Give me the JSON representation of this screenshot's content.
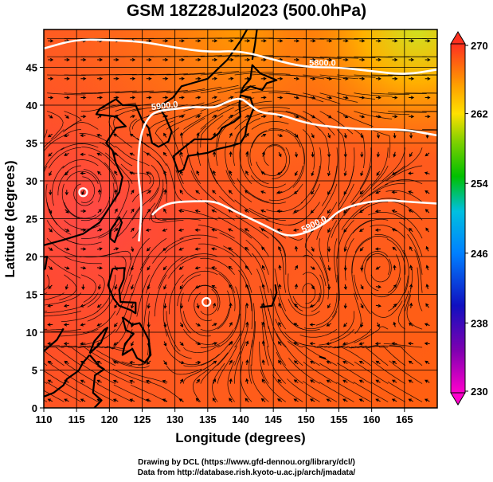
{
  "title": "GSM 18Z28Jul2023 (500.0hPa)",
  "axes": {
    "xlabel": "Longitude (degrees)",
    "ylabel": "Latitude  (degrees)",
    "x_ticks": [
      "110",
      "115",
      "120",
      "125",
      "130",
      "135",
      "140",
      "145",
      "150",
      "155",
      "160",
      "165"
    ],
    "y_ticks": [
      "0",
      "5",
      "10",
      "15",
      "20",
      "25",
      "30",
      "35",
      "40",
      "45"
    ],
    "xlim": [
      110,
      170
    ],
    "ylim": [
      0,
      50
    ]
  },
  "colorbar": {
    "labels": [
      "270",
      "262",
      "254",
      "246",
      "238",
      "230"
    ],
    "range": [
      230,
      270
    ]
  },
  "contours": [
    {
      "label": "5800.0",
      "points": [
        [
          110,
          47.5
        ],
        [
          115,
          48.7
        ],
        [
          120,
          48.6
        ],
        [
          125,
          48.4
        ],
        [
          130,
          47.6
        ],
        [
          135,
          47.0
        ],
        [
          140,
          47.2
        ],
        [
          145,
          46.0
        ],
        [
          150,
          45.0
        ],
        [
          155,
          45.0
        ],
        [
          160,
          44.5
        ],
        [
          165,
          44.0
        ],
        [
          170,
          44.7
        ]
      ]
    },
    {
      "label": "5900.0",
      "points": [
        [
          124.5,
          22.0
        ],
        [
          125,
          27.0
        ],
        [
          124.3,
          31.0
        ],
        [
          124.6,
          35.5
        ],
        [
          125.6,
          38.0
        ],
        [
          127,
          39.2
        ],
        [
          130,
          39.5
        ],
        [
          133,
          39.8
        ],
        [
          136,
          39.6
        ],
        [
          138,
          40.5
        ],
        [
          140,
          41.0
        ],
        [
          141.5,
          40.0
        ],
        [
          143,
          39.0
        ],
        [
          146,
          38.8
        ],
        [
          150,
          37.6
        ],
        [
          155,
          37.0
        ],
        [
          160,
          36.8
        ],
        [
          165,
          36.8
        ],
        [
          170,
          36.0
        ]
      ]
    },
    {
      "label": "5900.0",
      "points": [
        [
          126.5,
          25.5
        ],
        [
          128,
          26.7
        ],
        [
          130,
          27.2
        ],
        [
          133,
          27.3
        ],
        [
          136,
          27.3
        ],
        [
          138,
          26.5
        ],
        [
          141,
          25.2
        ],
        [
          144,
          24.0
        ],
        [
          147,
          22.6
        ],
        [
          150,
          23.1
        ],
        [
          153,
          24.4
        ],
        [
          155,
          26.1
        ],
        [
          158,
          27.0
        ],
        [
          162,
          27.5
        ],
        [
          166,
          27.2
        ],
        [
          170,
          27.0
        ]
      ]
    }
  ],
  "centers": [
    {
      "lon": 116.0,
      "lat": 28.5
    },
    {
      "lon": 134.8,
      "lat": 14.0
    }
  ],
  "credits": {
    "line1": "Drawing by DCL (https://www.gfd-dennou.org/library/dcl/)",
    "line2": "Data from http://database.rish.kyoto-u.ac.jp/arch/jmadata/"
  },
  "colors": {
    "high": "#ff3010",
    "low": "#ff00aa",
    "contour": "#ffffff",
    "coast": "#000000"
  }
}
